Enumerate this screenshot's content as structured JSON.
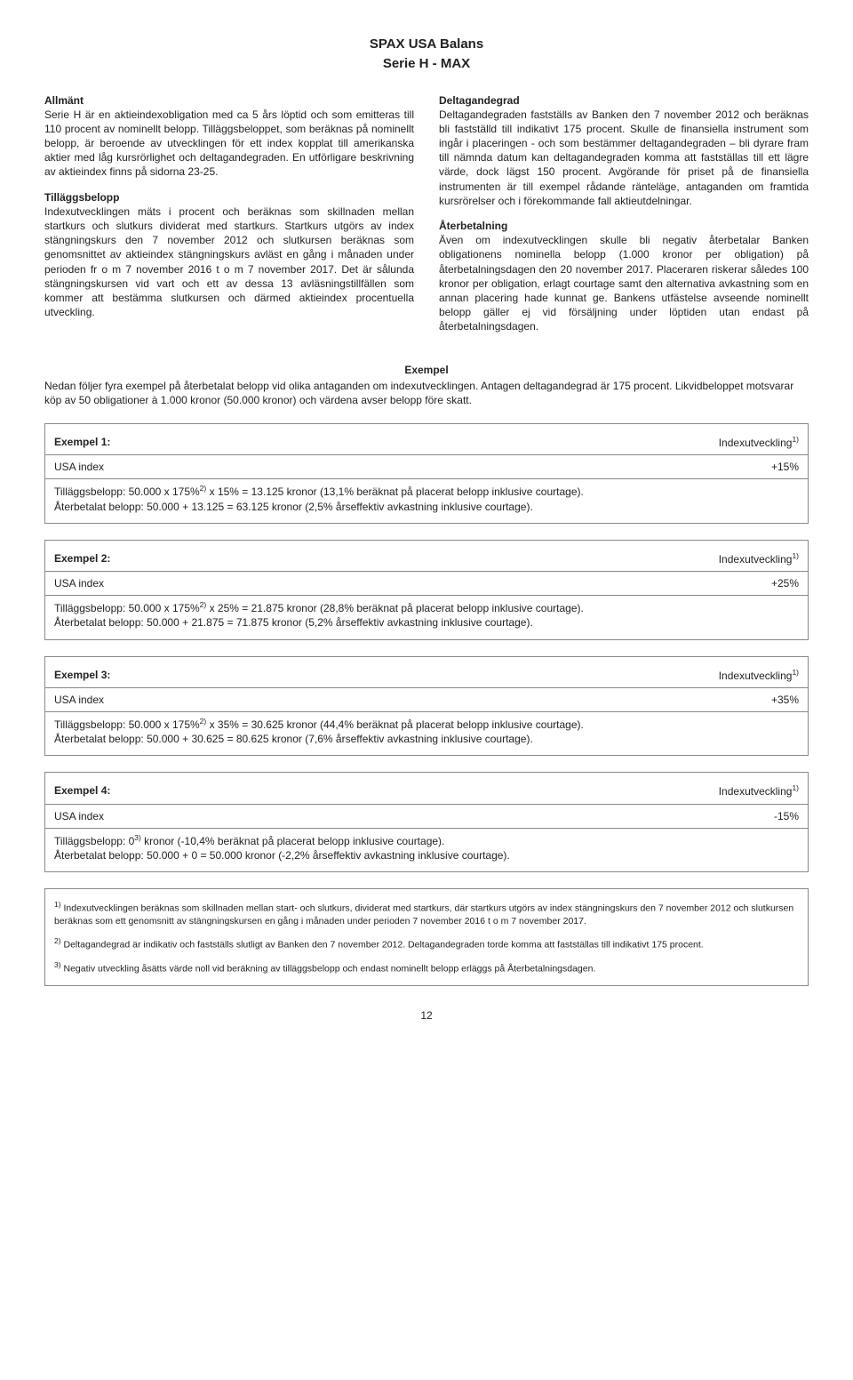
{
  "title": "SPAX USA Balans",
  "subtitle": "Serie H - MAX",
  "left_col": {
    "allmant_heading": "Allmänt",
    "allmant_body": "Serie H är en aktieindexobligation med ca 5 års löptid och som emitteras till 110 procent av nominellt belopp. Tilläggsbeloppet, som beräknas på nominellt belopp, är beroende av utvecklingen för ett index kopplat till amerikanska aktier med låg kursrörlighet och deltagandegraden. En utförligare beskrivning av aktieindex finns på sidorna 23-25.",
    "tillaggs_heading": "Tilläggsbelopp",
    "tillaggs_body": "Indexutvecklingen mäts i procent och beräknas som skillnaden mellan startkurs och slutkurs dividerat med startkurs. Startkurs utgörs av index stängningskurs den 7 november 2012 och slutkursen beräknas som genomsnittet av aktieindex stängningskurs avläst en gång i månaden under perioden fr o m 7 november 2016 t o m 7 november 2017. Det är sålunda stängningskursen vid vart och ett av dessa 13 avläsningstillfällen som kommer att bestämma slutkursen och därmed aktieindex procentuella utveckling."
  },
  "right_col": {
    "deltag_heading": "Deltagandegrad",
    "deltag_body": "Deltagandegraden fastställs av Banken den 7 november 2012 och beräknas bli fastställd till indikativt 175 procent. Skulle de finansiella instrument som ingår i placeringen - och som bestämmer deltagandegraden – bli dyrare fram till nämnda datum kan deltagandegraden komma att fastställas till ett lägre värde, dock lägst 150 procent. Avgörande för priset på de finansiella instrumenten är till exempel rådande ränteläge, antaganden om framtida kursrörelser och i förekommande fall aktieutdelningar.",
    "aterbet_heading": "Återbetalning",
    "aterbet_body": "Även om indexutvecklingen skulle bli negativ återbetalar Banken obligationens nominella belopp (1.000 kronor per obligation) på återbetalningsdagen den 20 november 2017. Placeraren riskerar således 100 kronor per obligation, erlagt courtage samt den alternativa avkastning som en annan placering hade kunnat ge. Bankens utfästelse avseende nominellt belopp gäller ej vid försäljning under löptiden utan endast på återbetalningsdagen."
  },
  "exempel_heading": "Exempel",
  "exempel_intro": "Nedan följer fyra exempel på återbetalat belopp vid olika antaganden om indexutvecklingen. Antagen deltagandegrad är 175 procent. Likvidbeloppet motsvarar köp av 50 obligationer à 1.000 kronor (50.000 kronor) och värdena avser belopp före skatt.",
  "index_label": "Indexutveckling",
  "sup1": "1)",
  "sup2": "2)",
  "sup3": "3)",
  "usa_index": "USA index",
  "examples": [
    {
      "label": "Exempel 1:",
      "value": "+15%",
      "line1a": "Tilläggsbelopp: 50.000 x 175%",
      "line1b": " x 15% = 13.125 kronor (13,1% beräknat på placerat belopp inklusive courtage).",
      "line2": "Återbetalat belopp: 50.000 + 13.125 = 63.125 kronor (2,5% årseffektiv avkastning inklusive courtage)."
    },
    {
      "label": "Exempel 2:",
      "value": "+25%",
      "line1a": "Tilläggsbelopp: 50.000 x 175%",
      "line1b": " x 25% = 21.875 kronor (28,8% beräknat på placerat belopp inklusive courtage).",
      "line2": "Återbetalat belopp: 50.000 + 21.875 = 71.875 kronor (5,2% årseffektiv avkastning inklusive courtage)."
    },
    {
      "label": "Exempel 3:",
      "value": "+35%",
      "line1a": "Tilläggsbelopp: 50.000 x 175%",
      "line1b": " x 35% = 30.625 kronor (44,4% beräknat på placerat belopp inklusive courtage).",
      "line2": "Återbetalat belopp: 50.000 + 30.625 = 80.625 kronor (7,6% årseffektiv avkastning inklusive courtage)."
    },
    {
      "label": "Exempel 4:",
      "value": "-15%",
      "line1a": "Tilläggsbelopp: 0",
      "line1b": " kronor (-10,4% beräknat på placerat belopp inklusive courtage).",
      "line2": "Återbetalat belopp: 50.000 + 0 = 50.000 kronor (-2,2% årseffektiv avkastning inklusive courtage)."
    }
  ],
  "footnotes": {
    "fn1a": "1)",
    "fn1b": " Indexutvecklingen beräknas som skillnaden mellan start- och slutkurs, dividerat med startkurs, där startkurs utgörs av index stängningskurs den 7 november 2012 och slutkursen beräknas som ett genomsnitt av stängningskursen en gång i månaden under perioden 7 november 2016 t o m 7 november 2017.",
    "fn2a": "2)",
    "fn2b": " Deltagandegrad är indikativ och fastställs slutligt av Banken den 7 november 2012. Deltagandegraden torde komma att fastställas till indikativt 175 procent.",
    "fn3a": "3)",
    "fn3b": " Negativ utveckling åsätts värde noll vid beräkning av tilläggsbelopp och endast nominellt belopp erläggs på Återbetalningsdagen."
  },
  "page_number": "12"
}
